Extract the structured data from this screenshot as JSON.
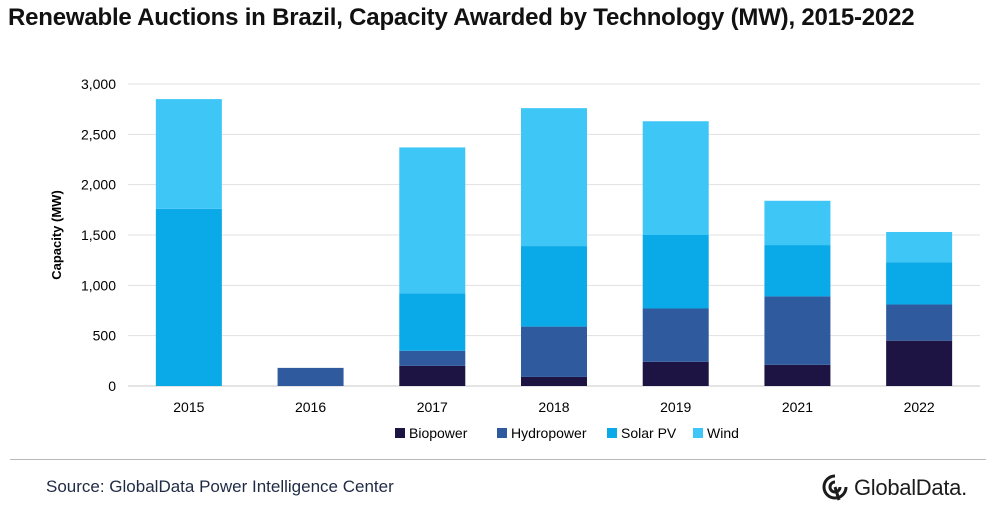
{
  "title": "Renewable Auctions in Brazil, Capacity Awarded by Technology (MW), 2015-2022",
  "source": "Source: GlobalData Power Intelligence Center",
  "brand": "GlobalData.",
  "brand_icon": "globaldata-logo-icon",
  "chart_data": {
    "type": "bar",
    "stacked": true,
    "categories": [
      "2015",
      "2016",
      "2017",
      "2018",
      "2019",
      "2021",
      "2022"
    ],
    "ylabel": "Capacity (MW)",
    "xlabel": "",
    "ylim": [
      0,
      3000
    ],
    "yticks": [
      0,
      500,
      1000,
      1500,
      2000,
      2500,
      3000
    ],
    "ytick_labels": [
      "0",
      "500",
      "1,000",
      "1,500",
      "2,000",
      "2,500",
      "3,000"
    ],
    "grid": true,
    "legend_position": "bottom",
    "series": [
      {
        "name": "Biopower",
        "color": "#1e1443",
        "values": [
          0,
          0,
          200,
          90,
          240,
          210,
          450
        ]
      },
      {
        "name": "Hydropower",
        "color": "#2f5b9e",
        "values": [
          0,
          180,
          150,
          500,
          530,
          680,
          360
        ]
      },
      {
        "name": "Solar PV",
        "color": "#0aa9e8",
        "values": [
          1760,
          0,
          570,
          800,
          730,
          510,
          420
        ]
      },
      {
        "name": "Wind",
        "color": "#3ec6f7",
        "values": [
          1090,
          0,
          1450,
          1370,
          1130,
          440,
          300
        ]
      }
    ]
  }
}
